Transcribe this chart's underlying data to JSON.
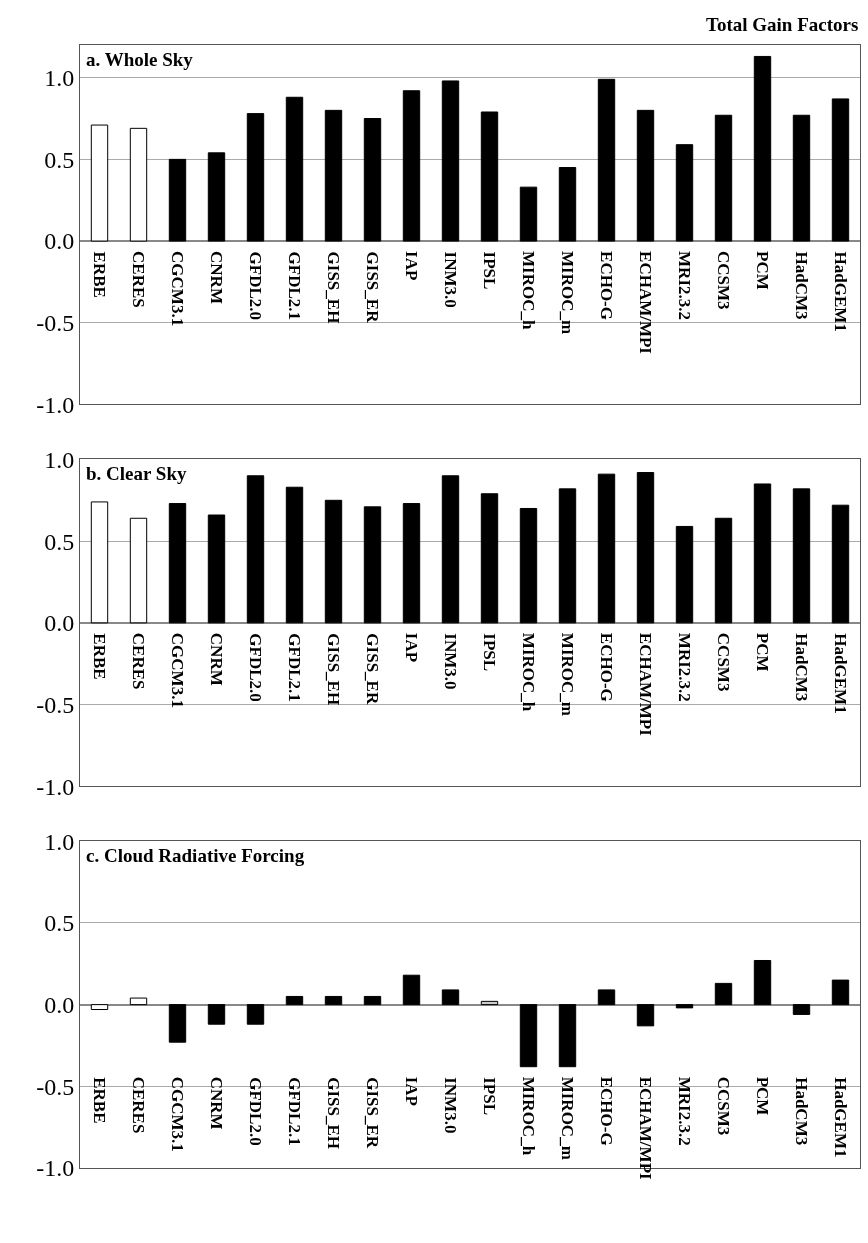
{
  "chart_data": [
    {
      "type": "bar",
      "title": "a. Whole Sky",
      "annotations": [
        "Total Gain Factors"
      ],
      "categories": [
        "ERBE",
        "CERES",
        "CGCM3.1",
        "CNRM",
        "GFDL2.0",
        "GFDL2.1",
        "GISS_EH",
        "GISS_ER",
        "IAP",
        "INM3.0",
        "IPSL",
        "MIROC_h",
        "MIROC_m",
        "ECHO-G",
        "ECHAM/MPI",
        "MRI2.3.2",
        "CCSM3",
        "PCM",
        "HadCM3",
        "HadGEM1"
      ],
      "values": [
        0.71,
        0.69,
        0.5,
        0.54,
        0.78,
        0.88,
        0.8,
        0.75,
        0.92,
        0.98,
        0.79,
        0.33,
        0.45,
        0.99,
        0.8,
        0.59,
        0.77,
        1.13,
        0.77,
        0.87
      ],
      "colors": [
        "#ffffff",
        "#ffffff",
        "#000000",
        "#000000",
        "#000000",
        "#000000",
        "#000000",
        "#000000",
        "#000000",
        "#000000",
        "#000000",
        "#000000",
        "#000000",
        "#000000",
        "#000000",
        "#000000",
        "#000000",
        "#000000",
        "#000000",
        "#000000"
      ],
      "ylim": [
        -1,
        1.2
      ],
      "yticks": [
        {
          "value": -1,
          "label": "-1.0"
        },
        {
          "value": -0.5,
          "label": "-0.5"
        },
        {
          "value": 0,
          "label": "0.0"
        },
        {
          "value": 0.5,
          "label": "0.5"
        },
        {
          "value": 1,
          "label": "1.0"
        }
      ],
      "grid": "y"
    },
    {
      "type": "bar",
      "title": "b. Clear Sky",
      "categories": [
        "ERBE",
        "CERES",
        "CGCM3.1",
        "CNRM",
        "GFDL2.0",
        "GFDL2.1",
        "GISS_EH",
        "GISS_ER",
        "IAP",
        "INM3.0",
        "IPSL",
        "MIROC_h",
        "MIROC_m",
        "ECHO-G",
        "ECHAM/MPI",
        "MRI2.3.2",
        "CCSM3",
        "PCM",
        "HadCM3",
        "HadGEM1"
      ],
      "values": [
        0.74,
        0.64,
        0.73,
        0.66,
        0.9,
        0.83,
        0.75,
        0.71,
        0.73,
        0.9,
        0.79,
        0.7,
        0.82,
        0.91,
        0.92,
        0.59,
        0.64,
        0.85,
        0.82,
        0.72
      ],
      "colors": [
        "#ffffff",
        "#ffffff",
        "#000000",
        "#000000",
        "#000000",
        "#000000",
        "#000000",
        "#000000",
        "#000000",
        "#000000",
        "#000000",
        "#000000",
        "#000000",
        "#000000",
        "#000000",
        "#000000",
        "#000000",
        "#000000",
        "#000000",
        "#000000"
      ],
      "ylim": [
        -1,
        1
      ],
      "yticks": [
        {
          "value": -1,
          "label": "-1.0"
        },
        {
          "value": -0.5,
          "label": "-0.5"
        },
        {
          "value": 0,
          "label": "0.0"
        },
        {
          "value": 0.5,
          "label": "0.5"
        },
        {
          "value": 1,
          "label": "1.0"
        }
      ],
      "grid": "y"
    },
    {
      "type": "bar",
      "title": "c. Cloud Radiative Forcing",
      "categories": [
        "ERBE",
        "CERES",
        "CGCM3.1",
        "CNRM",
        "GFDL2.0",
        "GFDL2.1",
        "GISS_EH",
        "GISS_ER",
        "IAP",
        "INM3.0",
        "IPSL",
        "MIROC_h",
        "MIROC_m",
        "ECHO-G",
        "ECHAM/MPI",
        "MRI2.3.2",
        "CCSM3",
        "PCM",
        "HadCM3",
        "HadGEM1"
      ],
      "values": [
        -0.03,
        0.04,
        -0.23,
        -0.12,
        -0.12,
        0.05,
        0.05,
        0.05,
        0.18,
        0.09,
        0.02,
        -0.38,
        -0.38,
        0.09,
        -0.13,
        -0.02,
        0.13,
        0.27,
        -0.06,
        0.15
      ],
      "colors": [
        "#ffffff",
        "#ffffff",
        "#000000",
        "#000000",
        "#000000",
        "#000000",
        "#000000",
        "#000000",
        "#000000",
        "#000000",
        "#cccccc",
        "#000000",
        "#000000",
        "#000000",
        "#000000",
        "#000000",
        "#000000",
        "#000000",
        "#000000",
        "#000000"
      ],
      "ylim": [
        -1,
        1
      ],
      "yticks": [
        {
          "value": -1,
          "label": "-1.0"
        },
        {
          "value": -0.5,
          "label": "-0.5"
        },
        {
          "value": 0,
          "label": "0.0"
        },
        {
          "value": 0.5,
          "label": "0.5"
        },
        {
          "value": 1,
          "label": "1.0"
        }
      ],
      "grid": "y"
    }
  ]
}
